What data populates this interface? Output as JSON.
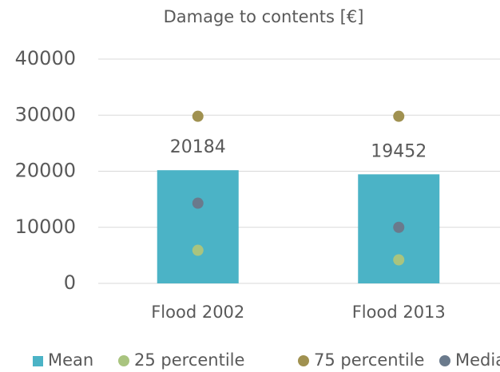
{
  "chart_data": {
    "type": "bar",
    "title": "Damage to contents [€]",
    "categories": [
      "Flood 2002",
      "Flood 2013"
    ],
    "series": [
      {
        "name": "Mean",
        "type": "bar",
        "color": "#4bb3c6",
        "values": [
          20184,
          19452
        ]
      },
      {
        "name": "25 percentile",
        "type": "scatter",
        "color": "#a9c47f",
        "values": [
          5900,
          4200
        ]
      },
      {
        "name": "75 percentile",
        "type": "scatter",
        "color": "#a09150",
        "values": [
          29800,
          29800
        ]
      },
      {
        "name": "Median",
        "type": "scatter",
        "color": "#6a7a8c",
        "values": [
          14300,
          10000
        ]
      }
    ],
    "ylim": [
      0,
      40000
    ],
    "yticks": [
      0,
      10000,
      20000,
      30000,
      40000
    ],
    "grid": true,
    "legend": "bottom"
  }
}
